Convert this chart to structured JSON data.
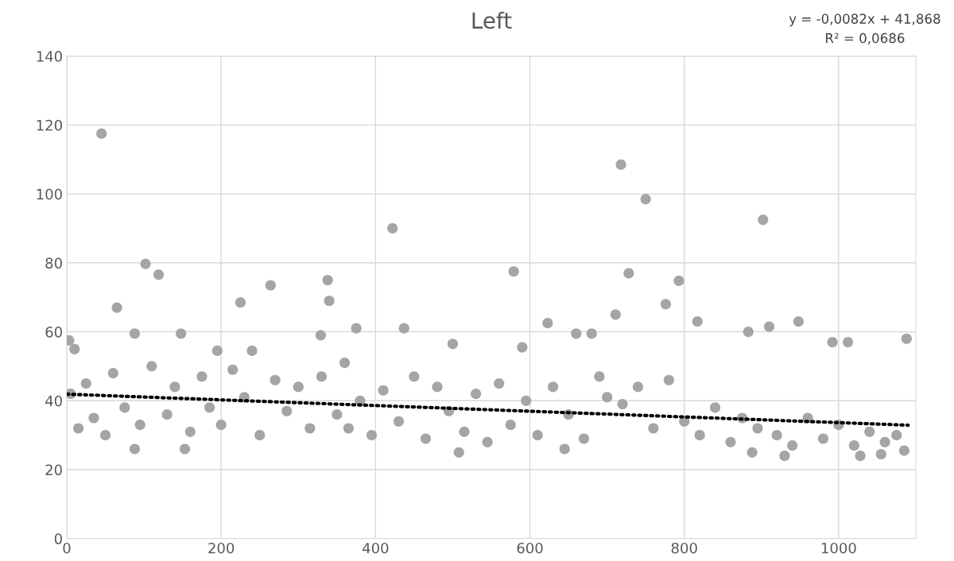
{
  "chart_data": {
    "type": "scatter",
    "title": "Left",
    "annotations": [
      "y = -0,0082x + 41,868",
      "R² = 0,0686"
    ],
    "xlim": [
      0,
      1100
    ],
    "xticks": [
      0,
      200,
      400,
      600,
      800,
      1000
    ],
    "ylim": [
      0,
      140
    ],
    "yticks": [
      0,
      20,
      40,
      60,
      80,
      100,
      120,
      140
    ],
    "grid": true,
    "legend": false,
    "series": [
      {
        "color": "#a5a5a5",
        "marker": "circle",
        "x": [
          45,
          102,
          119,
          65,
          88,
          148,
          225,
          264,
          338,
          340,
          422,
          579,
          718,
          750,
          728,
          776,
          793,
          902,
          948,
          623,
          711,
          3,
          10,
          195,
          240,
          329,
          375,
          437,
          500,
          590,
          660,
          680,
          817,
          883,
          910,
          992,
          1012,
          1088,
          88,
          153,
          365,
          508,
          645,
          888,
          1028,
          1085,
          1055,
          930,
          5,
          15,
          25,
          35,
          50,
          60,
          75,
          95,
          110,
          130,
          140,
          160,
          175,
          185,
          200,
          215,
          230,
          250,
          270,
          285,
          300,
          315,
          330,
          350,
          360,
          380,
          395,
          410,
          430,
          450,
          465,
          480,
          495,
          515,
          530,
          545,
          560,
          575,
          595,
          610,
          630,
          650,
          670,
          690,
          700,
          720,
          740,
          760,
          780,
          800,
          820,
          840,
          860,
          875,
          895,
          920,
          940,
          960,
          980,
          1000,
          1020,
          1040,
          1060,
          1075
        ],
        "values": [
          117.5,
          79.7,
          76.6,
          67,
          59.5,
          59.5,
          68.5,
          73.5,
          75,
          69,
          90,
          77.5,
          108.5,
          98.5,
          77,
          68,
          74.8,
          92.5,
          63,
          62.5,
          65,
          57.5,
          55,
          54.5,
          54.5,
          59,
          61,
          61,
          56.5,
          55.5,
          59.5,
          59.5,
          63,
          60,
          61.5,
          57,
          57,
          58,
          26,
          26,
          32,
          25,
          26,
          25,
          24,
          25.5,
          24.5,
          24,
          42,
          32,
          45,
          35,
          30,
          48,
          38,
          33,
          50,
          36,
          44,
          31,
          47,
          38,
          33,
          49,
          41,
          30,
          46,
          37,
          44,
          32,
          47,
          36,
          51,
          40,
          30,
          43,
          34,
          47,
          29,
          44,
          37,
          31,
          42,
          28,
          45,
          33,
          40,
          30,
          44,
          36,
          29,
          47,
          41,
          39,
          44,
          32,
          46,
          34,
          30,
          38,
          28,
          35,
          32,
          30,
          27,
          35,
          29,
          33,
          27,
          31,
          28,
          30
        ]
      },
      {
        "type": "line",
        "color": "#000000",
        "marker": "none",
        "line_style": "dotted",
        "x": [
          0,
          1090
        ],
        "values": [
          41.9,
          32.9
        ]
      }
    ]
  }
}
